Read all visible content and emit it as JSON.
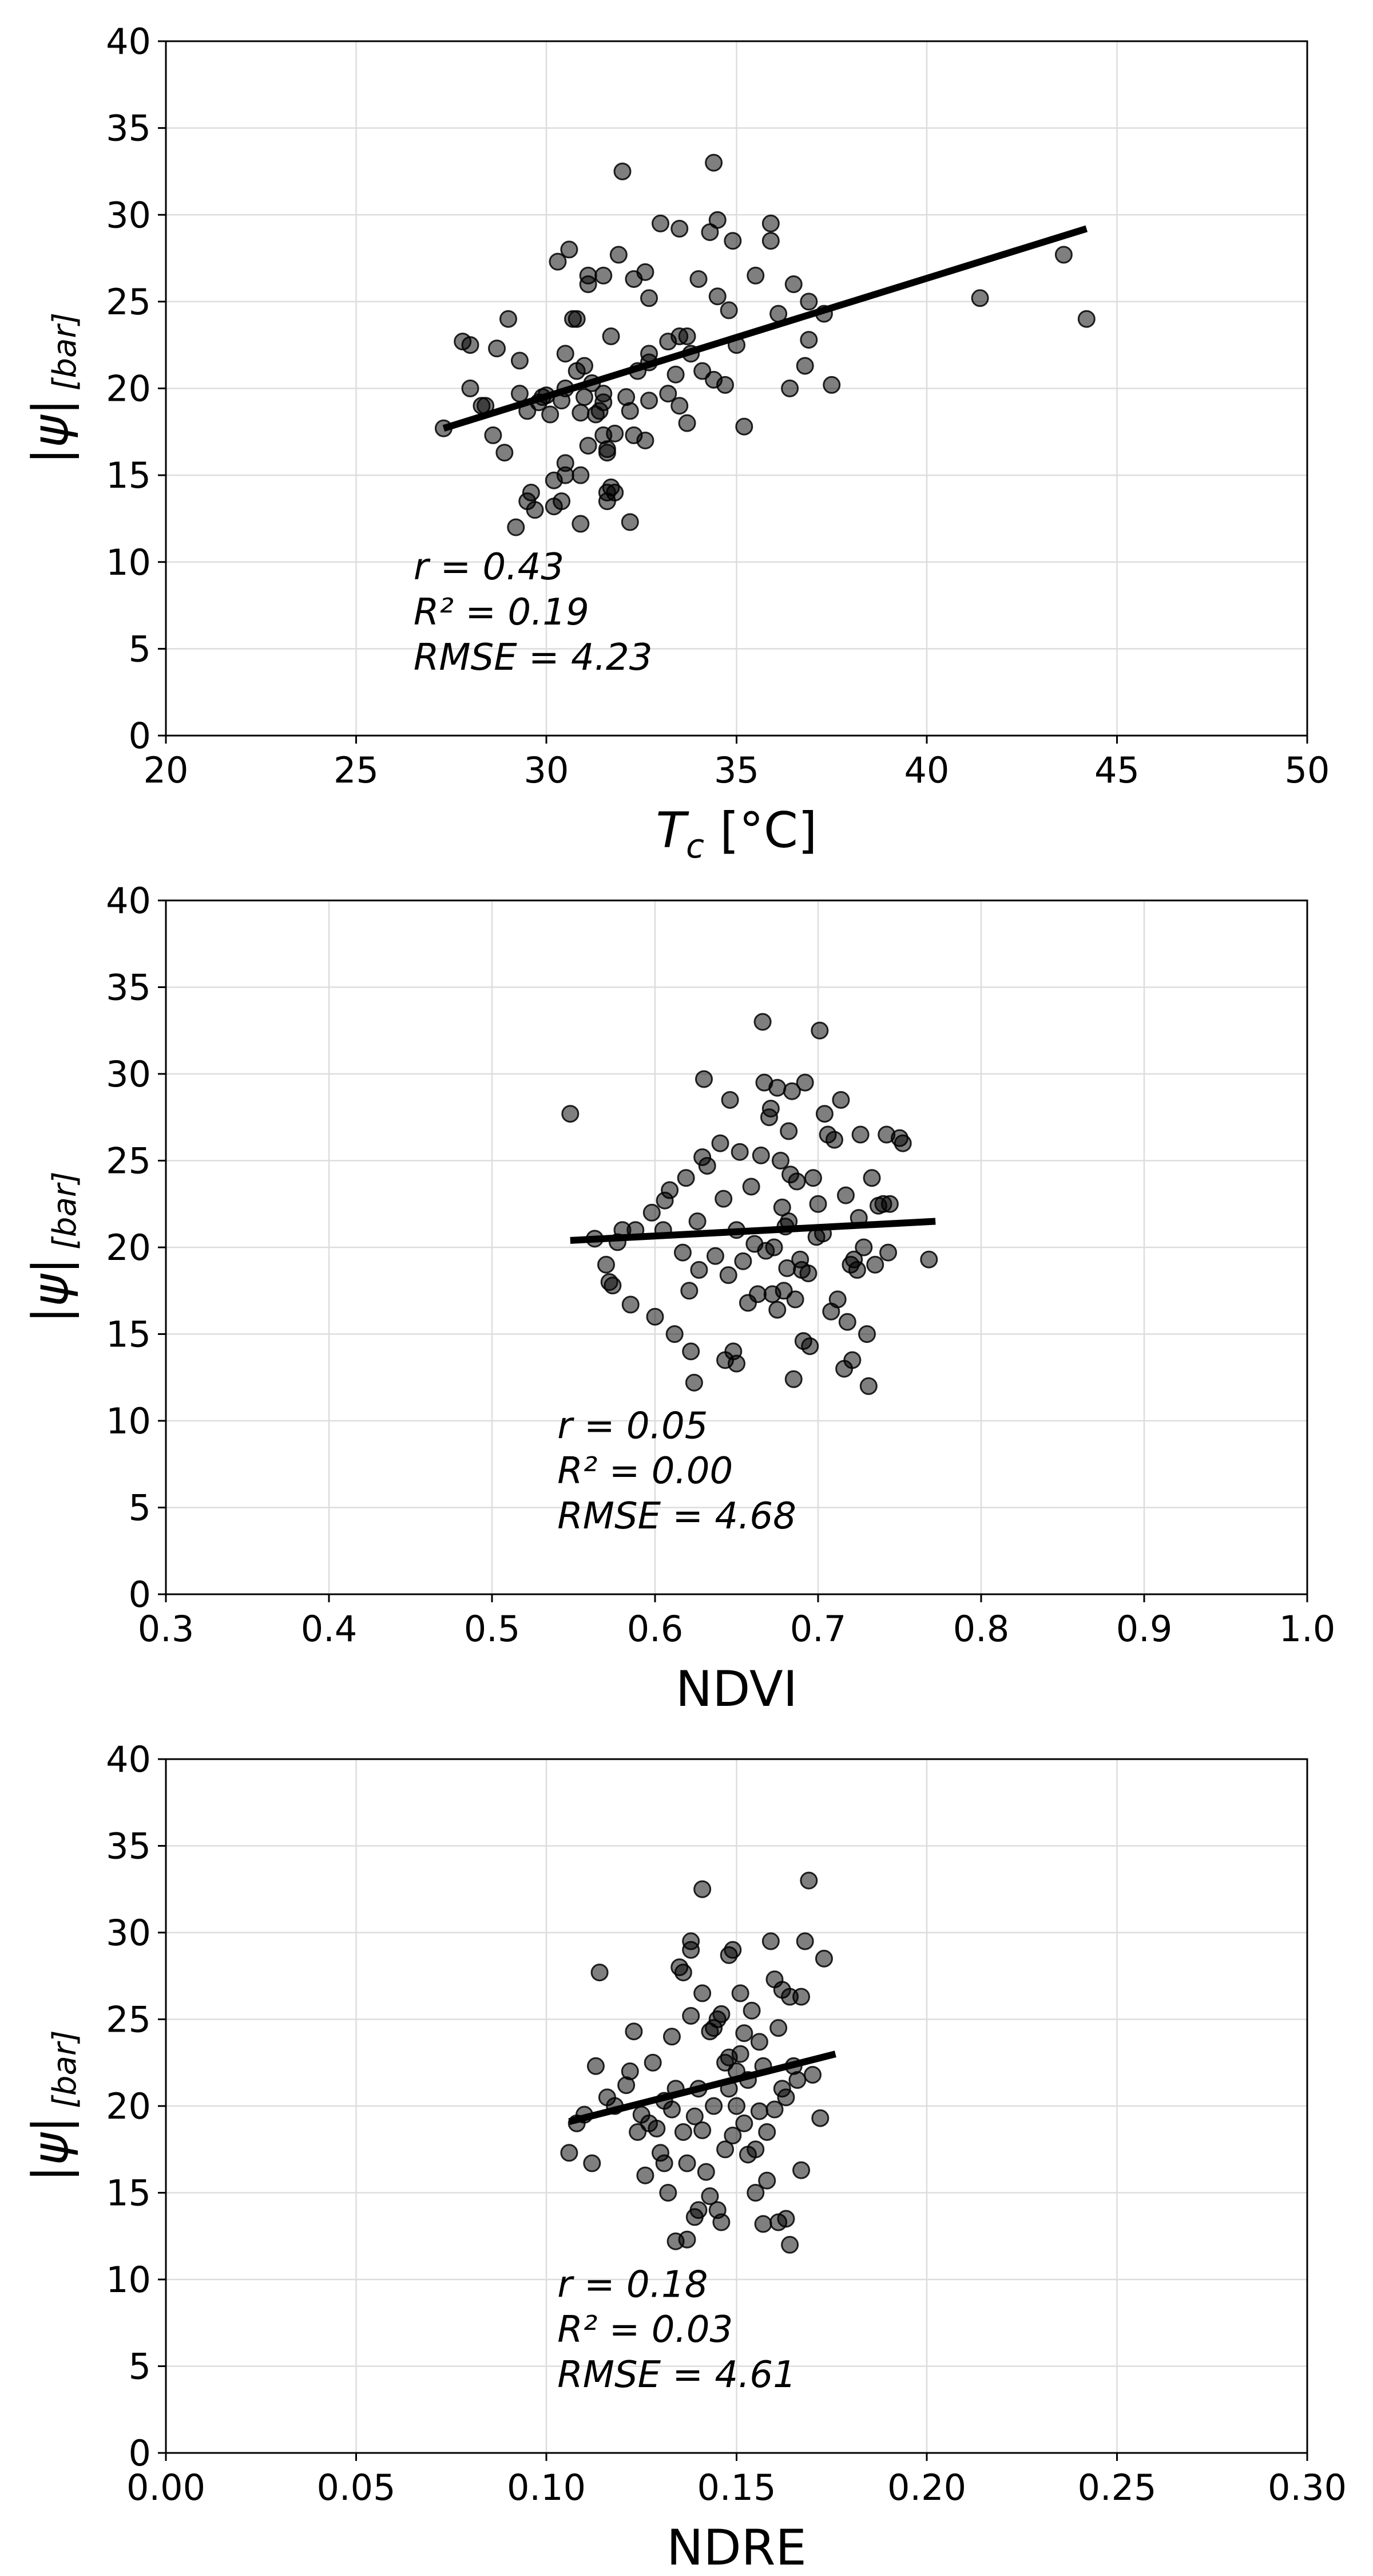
{
  "chart_data": [
    {
      "type": "scatter",
      "xlabel_base": "T",
      "xlabel_sub": "c",
      "xlabel_unit": " [°C]",
      "ylabel_main": "|ψ|",
      "ylabel_unit": "[bar]",
      "xlim": [
        20,
        50
      ],
      "ylim": [
        0,
        40
      ],
      "xticks": [
        20,
        25,
        30,
        35,
        40,
        45,
        50
      ],
      "xtick_labels": [
        "20",
        "25",
        "30",
        "35",
        "40",
        "45",
        "50"
      ],
      "yticks": [
        0,
        5,
        10,
        15,
        20,
        25,
        30,
        35,
        40
      ],
      "ytick_labels": [
        "0",
        "5",
        "10",
        "15",
        "20",
        "25",
        "30",
        "35",
        "40"
      ],
      "grid": true,
      "fit_line": {
        "x": [
          27.3,
          44.2
        ],
        "y": [
          17.7,
          29.2
        ]
      },
      "stats": {
        "r": "r = 0.43",
        "r2": "R² = 0.19",
        "rmse": "RMSE = 4.23"
      },
      "points": [
        [
          27.3,
          17.7
        ],
        [
          27.8,
          22.7
        ],
        [
          28.0,
          22.5
        ],
        [
          28.0,
          20.0
        ],
        [
          28.3,
          19.0
        ],
        [
          28.4,
          19.0
        ],
        [
          28.6,
          17.3
        ],
        [
          28.7,
          22.3
        ],
        [
          28.9,
          16.3
        ],
        [
          29.0,
          24.0
        ],
        [
          29.2,
          12.0
        ],
        [
          29.3,
          21.6
        ],
        [
          29.3,
          19.7
        ],
        [
          29.5,
          18.7
        ],
        [
          29.5,
          13.5
        ],
        [
          29.6,
          14.0
        ],
        [
          29.7,
          13.0
        ],
        [
          29.8,
          19.2
        ],
        [
          29.9,
          19.5
        ],
        [
          30.0,
          19.6
        ],
        [
          30.1,
          18.5
        ],
        [
          30.2,
          13.2
        ],
        [
          30.2,
          14.7
        ],
        [
          30.3,
          27.3
        ],
        [
          30.4,
          13.5
        ],
        [
          30.4,
          19.3
        ],
        [
          30.5,
          20.0
        ],
        [
          30.5,
          22.0
        ],
        [
          30.5,
          15.7
        ],
        [
          30.5,
          15.0
        ],
        [
          30.6,
          28.0
        ],
        [
          30.7,
          24.0
        ],
        [
          30.8,
          24.0
        ],
        [
          30.8,
          21.0
        ],
        [
          30.9,
          18.6
        ],
        [
          30.9,
          15.0
        ],
        [
          30.9,
          12.2
        ],
        [
          31.0,
          19.5
        ],
        [
          31.0,
          21.3
        ],
        [
          31.1,
          16.7
        ],
        [
          31.1,
          26.0
        ],
        [
          31.1,
          26.5
        ],
        [
          31.2,
          20.3
        ],
        [
          31.3,
          18.5
        ],
        [
          31.4,
          18.7
        ],
        [
          31.5,
          26.5
        ],
        [
          31.5,
          19.2
        ],
        [
          31.5,
          19.7
        ],
        [
          31.5,
          17.3
        ],
        [
          31.6,
          16.3
        ],
        [
          31.6,
          16.5
        ],
        [
          31.6,
          14.0
        ],
        [
          31.6,
          13.5
        ],
        [
          31.7,
          23.0
        ],
        [
          31.7,
          14.3
        ],
        [
          31.8,
          14.0
        ],
        [
          31.8,
          17.4
        ],
        [
          31.9,
          27.7
        ],
        [
          32.0,
          32.5
        ],
        [
          32.1,
          19.5
        ],
        [
          32.2,
          18.7
        ],
        [
          32.2,
          12.3
        ],
        [
          32.3,
          17.3
        ],
        [
          32.3,
          26.3
        ],
        [
          32.4,
          21.0
        ],
        [
          32.6,
          17.0
        ],
        [
          32.6,
          26.7
        ],
        [
          32.7,
          22.0
        ],
        [
          32.7,
          21.5
        ],
        [
          32.7,
          25.2
        ],
        [
          32.7,
          19.3
        ],
        [
          33.0,
          29.5
        ],
        [
          33.2,
          22.7
        ],
        [
          33.2,
          19.7
        ],
        [
          33.4,
          20.8
        ],
        [
          33.5,
          19.0
        ],
        [
          33.5,
          29.2
        ],
        [
          33.5,
          23.0
        ],
        [
          33.7,
          23.0
        ],
        [
          33.7,
          18.0
        ],
        [
          33.8,
          22.0
        ],
        [
          34.0,
          26.3
        ],
        [
          34.1,
          21.0
        ],
        [
          34.3,
          29.0
        ],
        [
          34.4,
          33.0
        ],
        [
          34.4,
          20.5
        ],
        [
          34.5,
          29.7
        ],
        [
          34.5,
          25.3
        ],
        [
          34.7,
          20.2
        ],
        [
          34.8,
          24.5
        ],
        [
          34.9,
          28.5
        ],
        [
          35.0,
          22.5
        ],
        [
          35.2,
          17.8
        ],
        [
          35.5,
          26.5
        ],
        [
          35.9,
          29.5
        ],
        [
          35.9,
          28.5
        ],
        [
          36.1,
          24.3
        ],
        [
          36.4,
          20.0
        ],
        [
          36.5,
          26.0
        ],
        [
          36.8,
          21.3
        ],
        [
          36.9,
          22.8
        ],
        [
          36.9,
          25.0
        ],
        [
          37.3,
          24.3
        ],
        [
          37.5,
          20.2
        ],
        [
          41.4,
          25.2
        ],
        [
          43.6,
          27.7
        ],
        [
          44.2,
          24.0
        ]
      ]
    },
    {
      "type": "scatter",
      "xlabel": "NDVI",
      "ylabel_main": "|ψ|",
      "ylabel_unit": "[bar]",
      "xlim": [
        0.3,
        1.0
      ],
      "ylim": [
        0,
        40
      ],
      "xticks": [
        0.3,
        0.4,
        0.5,
        0.6,
        0.7,
        0.8,
        0.9,
        1.0
      ],
      "xtick_labels": [
        "0.3",
        "0.4",
        "0.5",
        "0.6",
        "0.7",
        "0.8",
        "0.9",
        "1.0"
      ],
      "yticks": [
        0,
        5,
        10,
        15,
        20,
        25,
        30,
        35,
        40
      ],
      "ytick_labels": [
        "0",
        "5",
        "10",
        "15",
        "20",
        "25",
        "30",
        "35",
        "40"
      ],
      "grid": true,
      "fit_line": {
        "x": [
          0.548,
          0.772
        ],
        "y": [
          20.4,
          21.5
        ]
      },
      "stats": {
        "r": "r = 0.05",
        "r2": "R² = 0.00",
        "rmse": "RMSE = 4.68"
      },
      "points": [
        [
          0.548,
          27.7
        ],
        [
          0.563,
          20.5
        ],
        [
          0.57,
          19.0
        ],
        [
          0.572,
          18.0
        ],
        [
          0.574,
          17.8
        ],
        [
          0.577,
          20.3
        ],
        [
          0.58,
          21.0
        ],
        [
          0.585,
          16.7
        ],
        [
          0.588,
          21.0
        ],
        [
          0.598,
          22.0
        ],
        [
          0.6,
          16.0
        ],
        [
          0.605,
          21.0
        ],
        [
          0.606,
          22.7
        ],
        [
          0.609,
          23.3
        ],
        [
          0.612,
          15.0
        ],
        [
          0.617,
          19.7
        ],
        [
          0.619,
          24.0
        ],
        [
          0.621,
          17.5
        ],
        [
          0.622,
          14.0
        ],
        [
          0.624,
          12.2
        ],
        [
          0.626,
          21.5
        ],
        [
          0.627,
          18.7
        ],
        [
          0.629,
          25.2
        ],
        [
          0.63,
          29.7
        ],
        [
          0.632,
          24.7
        ],
        [
          0.637,
          19.5
        ],
        [
          0.64,
          26.0
        ],
        [
          0.642,
          22.8
        ],
        [
          0.643,
          13.5
        ],
        [
          0.645,
          18.4
        ],
        [
          0.646,
          28.5
        ],
        [
          0.648,
          14.0
        ],
        [
          0.65,
          13.3
        ],
        [
          0.65,
          21.0
        ],
        [
          0.652,
          25.5
        ],
        [
          0.654,
          19.2
        ],
        [
          0.657,
          16.8
        ],
        [
          0.659,
          23.5
        ],
        [
          0.661,
          20.2
        ],
        [
          0.663,
          17.3
        ],
        [
          0.665,
          25.3
        ],
        [
          0.666,
          33.0
        ],
        [
          0.667,
          29.5
        ],
        [
          0.668,
          19.8
        ],
        [
          0.67,
          27.5
        ],
        [
          0.671,
          28.0
        ],
        [
          0.672,
          17.3
        ],
        [
          0.673,
          20.0
        ],
        [
          0.675,
          16.4
        ],
        [
          0.675,
          29.2
        ],
        [
          0.677,
          25.0
        ],
        [
          0.678,
          22.3
        ],
        [
          0.679,
          17.5
        ],
        [
          0.68,
          21.2
        ],
        [
          0.681,
          18.8
        ],
        [
          0.682,
          21.5
        ],
        [
          0.682,
          26.7
        ],
        [
          0.683,
          24.2
        ],
        [
          0.684,
          29.0
        ],
        [
          0.685,
          12.4
        ],
        [
          0.686,
          17.0
        ],
        [
          0.687,
          23.8
        ],
        [
          0.689,
          19.3
        ],
        [
          0.69,
          18.7
        ],
        [
          0.691,
          14.6
        ],
        [
          0.692,
          29.5
        ],
        [
          0.694,
          18.5
        ],
        [
          0.695,
          14.3
        ],
        [
          0.697,
          24.0
        ],
        [
          0.699,
          20.6
        ],
        [
          0.7,
          22.5
        ],
        [
          0.701,
          32.5
        ],
        [
          0.703,
          20.8
        ],
        [
          0.704,
          27.7
        ],
        [
          0.706,
          26.5
        ],
        [
          0.708,
          16.3
        ],
        [
          0.71,
          26.2
        ],
        [
          0.712,
          17.0
        ],
        [
          0.714,
          28.5
        ],
        [
          0.716,
          13.0
        ],
        [
          0.717,
          23.0
        ],
        [
          0.718,
          15.7
        ],
        [
          0.72,
          19.0
        ],
        [
          0.721,
          13.5
        ],
        [
          0.722,
          19.3
        ],
        [
          0.724,
          18.7
        ],
        [
          0.725,
          21.7
        ],
        [
          0.726,
          26.5
        ],
        [
          0.728,
          20.0
        ],
        [
          0.73,
          15.0
        ],
        [
          0.731,
          12.0
        ],
        [
          0.733,
          24.0
        ],
        [
          0.735,
          19.0
        ],
        [
          0.737,
          22.4
        ],
        [
          0.74,
          22.5
        ],
        [
          0.742,
          26.5
        ],
        [
          0.743,
          19.7
        ],
        [
          0.744,
          22.5
        ],
        [
          0.75,
          26.3
        ],
        [
          0.752,
          26.0
        ],
        [
          0.768,
          19.3
        ]
      ]
    },
    {
      "type": "scatter",
      "xlabel": "NDRE",
      "ylabel_main": "|ψ|",
      "ylabel_unit": "[bar]",
      "xlim": [
        0.0,
        0.3
      ],
      "ylim": [
        0,
        40
      ],
      "xticks": [
        0.0,
        0.05,
        0.1,
        0.15,
        0.2,
        0.25,
        0.3
      ],
      "xtick_labels": [
        "0.00",
        "0.05",
        "0.10",
        "0.15",
        "0.20",
        "0.25",
        "0.30"
      ],
      "yticks": [
        0,
        5,
        10,
        15,
        20,
        25,
        30,
        35,
        40
      ],
      "ytick_labels": [
        "0",
        "5",
        "10",
        "15",
        "20",
        "25",
        "30",
        "35",
        "40"
      ],
      "grid": true,
      "fit_line": {
        "x": [
          0.106,
          0.176
        ],
        "y": [
          19.1,
          23.0
        ]
      },
      "stats": {
        "r": "r = 0.18",
        "r2": "R² = 0.03",
        "rmse": "RMSE = 4.61"
      },
      "points": [
        [
          0.106,
          17.3
        ],
        [
          0.108,
          19.0
        ],
        [
          0.11,
          19.5
        ],
        [
          0.112,
          16.7
        ],
        [
          0.113,
          22.3
        ],
        [
          0.114,
          27.7
        ],
        [
          0.116,
          20.5
        ],
        [
          0.118,
          20.0
        ],
        [
          0.121,
          21.2
        ],
        [
          0.122,
          22.0
        ],
        [
          0.123,
          24.3
        ],
        [
          0.124,
          18.5
        ],
        [
          0.125,
          19.5
        ],
        [
          0.126,
          16.0
        ],
        [
          0.127,
          19.0
        ],
        [
          0.128,
          22.5
        ],
        [
          0.129,
          18.7
        ],
        [
          0.13,
          17.3
        ],
        [
          0.131,
          20.3
        ],
        [
          0.131,
          16.7
        ],
        [
          0.132,
          15.0
        ],
        [
          0.133,
          24.0
        ],
        [
          0.133,
          19.8
        ],
        [
          0.134,
          21.0
        ],
        [
          0.134,
          12.2
        ],
        [
          0.135,
          28.0
        ],
        [
          0.136,
          27.7
        ],
        [
          0.136,
          18.5
        ],
        [
          0.137,
          16.7
        ],
        [
          0.137,
          12.3
        ],
        [
          0.138,
          29.5
        ],
        [
          0.138,
          29.0
        ],
        [
          0.138,
          25.2
        ],
        [
          0.139,
          13.6
        ],
        [
          0.139,
          19.4
        ],
        [
          0.14,
          14.0
        ],
        [
          0.14,
          21.0
        ],
        [
          0.141,
          32.5
        ],
        [
          0.141,
          26.5
        ],
        [
          0.141,
          18.6
        ],
        [
          0.142,
          16.2
        ],
        [
          0.143,
          14.8
        ],
        [
          0.143,
          24.3
        ],
        [
          0.144,
          24.5
        ],
        [
          0.144,
          20.0
        ],
        [
          0.145,
          25.0
        ],
        [
          0.145,
          14.0
        ],
        [
          0.146,
          13.3
        ],
        [
          0.146,
          25.3
        ],
        [
          0.147,
          22.5
        ],
        [
          0.147,
          17.5
        ],
        [
          0.148,
          22.8
        ],
        [
          0.148,
          21.0
        ],
        [
          0.148,
          28.7
        ],
        [
          0.149,
          29.0
        ],
        [
          0.149,
          18.3
        ],
        [
          0.15,
          22.0
        ],
        [
          0.15,
          20.0
        ],
        [
          0.151,
          23.0
        ],
        [
          0.151,
          26.5
        ],
        [
          0.152,
          24.2
        ],
        [
          0.152,
          19.0
        ],
        [
          0.153,
          17.2
        ],
        [
          0.153,
          21.5
        ],
        [
          0.154,
          25.5
        ],
        [
          0.155,
          15.0
        ],
        [
          0.155,
          17.5
        ],
        [
          0.156,
          19.7
        ],
        [
          0.156,
          23.7
        ],
        [
          0.157,
          22.3
        ],
        [
          0.157,
          13.2
        ],
        [
          0.158,
          15.7
        ],
        [
          0.158,
          18.5
        ],
        [
          0.159,
          29.5
        ],
        [
          0.16,
          27.3
        ],
        [
          0.16,
          19.8
        ],
        [
          0.161,
          24.5
        ],
        [
          0.161,
          13.3
        ],
        [
          0.162,
          26.7
        ],
        [
          0.162,
          21.0
        ],
        [
          0.163,
          13.5
        ],
        [
          0.163,
          20.5
        ],
        [
          0.164,
          26.3
        ],
        [
          0.164,
          12.0
        ],
        [
          0.165,
          22.3
        ],
        [
          0.166,
          21.5
        ],
        [
          0.167,
          16.3
        ],
        [
          0.167,
          26.3
        ],
        [
          0.168,
          29.5
        ],
        [
          0.169,
          33.0
        ],
        [
          0.17,
          21.8
        ],
        [
          0.172,
          19.3
        ],
        [
          0.173,
          28.5
        ]
      ]
    }
  ]
}
